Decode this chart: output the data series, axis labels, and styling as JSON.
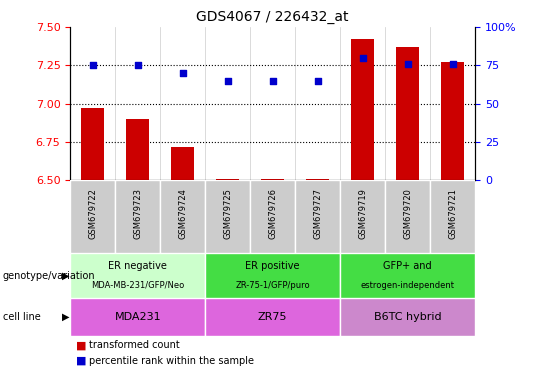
{
  "title": "GDS4067 / 226432_at",
  "samples": [
    "GSM679722",
    "GSM679723",
    "GSM679724",
    "GSM679725",
    "GSM679726",
    "GSM679727",
    "GSM679719",
    "GSM679720",
    "GSM679721"
  ],
  "transformed_counts": [
    6.97,
    6.9,
    6.72,
    6.51,
    6.51,
    6.51,
    7.42,
    7.37,
    7.27
  ],
  "percentile_ranks": [
    75,
    75,
    70,
    65,
    65,
    65,
    80,
    76,
    76
  ],
  "ylim_left": [
    6.5,
    7.5
  ],
  "ylim_right": [
    0,
    100
  ],
  "yticks_left": [
    6.5,
    6.75,
    7.0,
    7.25,
    7.5
  ],
  "yticks_right": [
    0,
    25,
    50,
    75,
    100
  ],
  "hlines": [
    6.75,
    7.0,
    7.25
  ],
  "bar_color": "#cc0000",
  "dot_color": "#0000cc",
  "bar_width": 0.5,
  "groups": [
    {
      "label_top": "ER negative",
      "label_bot": "MDA-MB-231/GFP/Neo",
      "start": 0,
      "end": 3,
      "color": "#ccffcc"
    },
    {
      "label_top": "ER positive",
      "label_bot": "ZR-75-1/GFP/puro",
      "start": 3,
      "end": 6,
      "color": "#44dd44"
    },
    {
      "label_top": "GFP+ and",
      "label_bot": "estrogen-independent",
      "start": 6,
      "end": 9,
      "color": "#44dd44"
    }
  ],
  "cell_lines": [
    {
      "label": "MDA231",
      "start": 0,
      "end": 3,
      "color": "#dd66dd"
    },
    {
      "label": "ZR75",
      "start": 3,
      "end": 6,
      "color": "#dd66dd"
    },
    {
      "label": "B6TC hybrid",
      "start": 6,
      "end": 9,
      "color": "#cc88cc"
    }
  ],
  "tick_box_color": "#cccccc",
  "genotype_label": "genotype/variation",
  "cellline_label": "cell line",
  "legend_items": [
    {
      "color": "#cc0000",
      "label": "transformed count"
    },
    {
      "color": "#0000cc",
      "label": "percentile rank within the sample"
    }
  ],
  "fig_width": 5.4,
  "fig_height": 3.84,
  "dpi": 100
}
